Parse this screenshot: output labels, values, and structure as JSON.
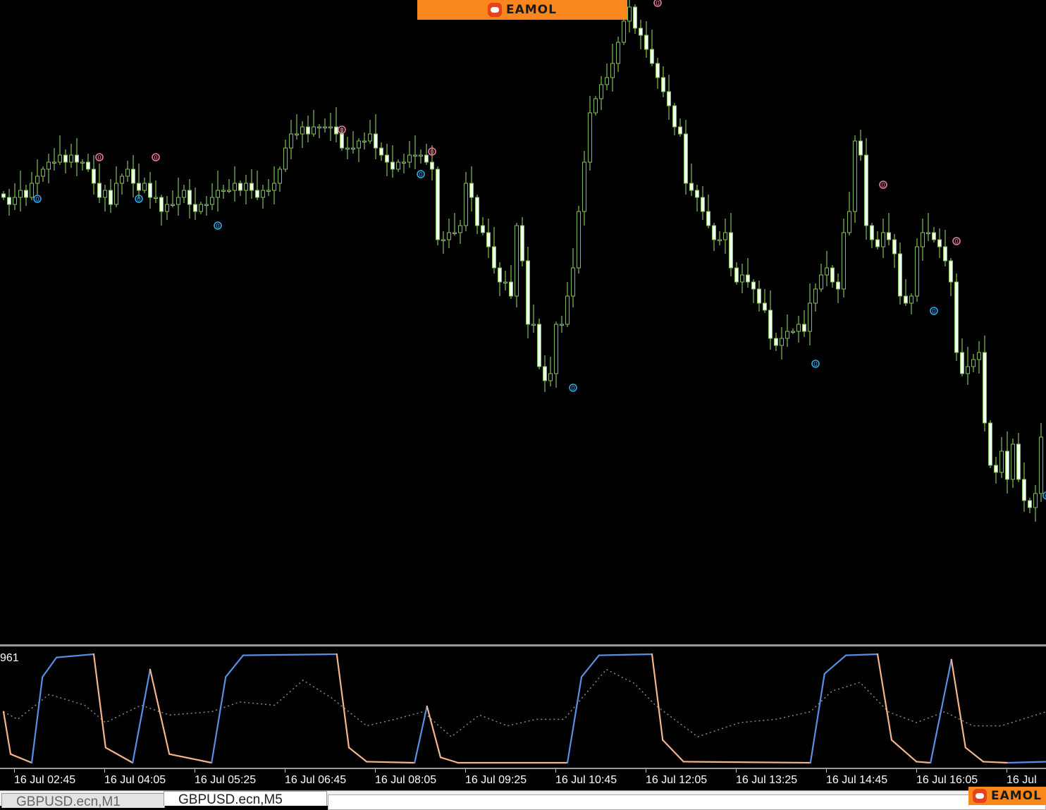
{
  "branding": {
    "logo_text": "EAMOL",
    "logo_color": "#fa861e"
  },
  "indicator": {
    "label": "961",
    "main_rising_color": "#5b8fe6",
    "main_falling_color": "#f5b48a",
    "signal_color": "#8a8a8a"
  },
  "time_axis": {
    "labels": [
      "16 Jul 02:45",
      "16 Jul 04:05",
      "16 Jul 05:25",
      "16 Jul 06:45",
      "16 Jul 08:05",
      "16 Jul 09:25",
      "16 Jul 10:45",
      "16 Jul 12:05",
      "16 Jul 13:25",
      "16 Jul 14:45",
      "16 Jul 16:05",
      "16 Jul"
    ]
  },
  "tabs": [
    {
      "label": "GBPUSD.ecn,M1",
      "active": false
    },
    {
      "label": "GBPUSD.ecn,M5",
      "active": true
    }
  ],
  "chart_data": [
    {
      "type": "candlestick",
      "symbol_timeframe": "GBPUSD.ecn,M5",
      "bar_interval_minutes": 5,
      "first_labeled_bar_time": "16 Jul 02:45",
      "price_axis": "not shown (relative price levels)",
      "colors": {
        "wick_outline": "#7fbf5a",
        "bear_body": "#f2fff0",
        "bull_body": "#000000",
        "background": "#000000"
      },
      "closes": [
        62,
        61,
        62,
        63,
        62,
        64,
        65,
        66,
        67,
        67,
        68,
        67,
        68,
        67,
        67,
        66,
        64,
        62,
        63,
        61,
        64,
        65,
        66,
        64,
        63,
        64,
        62,
        62,
        60,
        61,
        61,
        62,
        63,
        61,
        60,
        61,
        61,
        62,
        63,
        63,
        63,
        64,
        63,
        64,
        63,
        62,
        63,
        63,
        64,
        66,
        69,
        71,
        71,
        72,
        71,
        72,
        72,
        72,
        72,
        71,
        69,
        69,
        69,
        70,
        70,
        71,
        69,
        68,
        67,
        66,
        67,
        67,
        68,
        68,
        68,
        67,
        66,
        56,
        56,
        57,
        57,
        58,
        64,
        62,
        58,
        57,
        55,
        52,
        50,
        50,
        48,
        58,
        53,
        44,
        44,
        38,
        36,
        37,
        44,
        44,
        48,
        52,
        60,
        67,
        74,
        76,
        78,
        79,
        81,
        84,
        87,
        89,
        86,
        85,
        83,
        81,
        79,
        77,
        75,
        72,
        71,
        64,
        63,
        62,
        60,
        58,
        56,
        56,
        57,
        52,
        50,
        51,
        50,
        49,
        47,
        46,
        42,
        41,
        42,
        43,
        43,
        44,
        43,
        47,
        49,
        51,
        52,
        50,
        49,
        57,
        60,
        70,
        68,
        58,
        56,
        55,
        57,
        56,
        54,
        48,
        47,
        48,
        55,
        57,
        57,
        56,
        55,
        53,
        50,
        40,
        37,
        38,
        39,
        40,
        30,
        24,
        23,
        26,
        22,
        27,
        22,
        19,
        18,
        20,
        28
      ],
      "markers": [
        {
          "bar": 17,
          "level": 67.7,
          "text": "0",
          "kind": "high",
          "color": "#e87aa0"
        },
        {
          "bar": 27,
          "level": 67.7,
          "text": "0",
          "kind": "high",
          "color": "#e87aa0"
        },
        {
          "bar": 60,
          "level": 71.6,
          "text": "0",
          "kind": "high",
          "color": "#e87aa0"
        },
        {
          "bar": 76,
          "level": 68.5,
          "text": "0",
          "kind": "high",
          "color": "#e87aa0"
        },
        {
          "bar": 116,
          "level": 89.6,
          "text": "0",
          "kind": "high",
          "color": "#e87aa0"
        },
        {
          "bar": 156,
          "level": 63.8,
          "text": "0",
          "kind": "high",
          "color": "#e87aa0"
        },
        {
          "bar": 169,
          "level": 55.8,
          "text": "0",
          "kind": "high",
          "color": "#e87aa0"
        },
        {
          "bar": 6,
          "level": 61.8,
          "text": "0",
          "kind": "low",
          "color": "#2fa8e8"
        },
        {
          "bar": 24,
          "level": 61.8,
          "text": "0",
          "kind": "low",
          "color": "#2fa8e8"
        },
        {
          "bar": 38,
          "level": 58.0,
          "text": "0",
          "kind": "low",
          "color": "#2fa8e8"
        },
        {
          "bar": 74,
          "level": 65.3,
          "text": "0",
          "kind": "low",
          "color": "#2fa8e8"
        },
        {
          "bar": 101,
          "level": 35.0,
          "text": "0",
          "kind": "low",
          "color": "#2fa8e8"
        },
        {
          "bar": 144,
          "level": 38.4,
          "text": "0",
          "kind": "low",
          "color": "#2fa8e8"
        },
        {
          "bar": 165,
          "level": 45.9,
          "text": "0",
          "kind": "low",
          "color": "#2fa8e8"
        },
        {
          "bar": 185,
          "level": 19.7,
          "text": "0",
          "kind": "low",
          "color": "#2fa8e8"
        }
      ]
    },
    {
      "type": "line",
      "ylim": [
        0,
        100
      ],
      "main_line": [
        [
          0,
          47
        ],
        [
          1.25,
          8
        ],
        [
          5,
          0
        ],
        [
          6.9,
          79
        ],
        [
          9.4,
          97
        ],
        [
          16,
          100
        ],
        [
          18.1,
          14
        ],
        [
          22.9,
          0
        ],
        [
          26,
          86
        ],
        [
          29.4,
          8
        ],
        [
          36.9,
          0
        ],
        [
          39.4,
          79
        ],
        [
          42.5,
          99
        ],
        [
          59.1,
          100
        ],
        [
          61.25,
          14
        ],
        [
          64.4,
          1
        ],
        [
          72.9,
          0
        ],
        [
          75.1,
          52
        ],
        [
          77.5,
          5
        ],
        [
          80.6,
          0
        ],
        [
          100,
          0
        ],
        [
          102.5,
          79
        ],
        [
          105.6,
          99
        ],
        [
          115,
          100
        ],
        [
          116.9,
          21
        ],
        [
          120.6,
          1
        ],
        [
          143.1,
          0
        ],
        [
          145.6,
          82
        ],
        [
          149.4,
          99
        ],
        [
          155,
          100
        ],
        [
          157.5,
          21
        ],
        [
          161.9,
          1
        ],
        [
          164.4,
          0
        ],
        [
          168.1,
          95
        ],
        [
          170.6,
          14
        ],
        [
          173.75,
          1
        ],
        [
          178.1,
          0
        ],
        [
          184.9,
          1
        ]
      ],
      "signal_line": [
        [
          0,
          47
        ],
        [
          2.5,
          40
        ],
        [
          8.1,
          63
        ],
        [
          14.4,
          53
        ],
        [
          18.1,
          37
        ],
        [
          24.4,
          53
        ],
        [
          29.4,
          44
        ],
        [
          36.9,
          47
        ],
        [
          41.9,
          56
        ],
        [
          48.1,
          53
        ],
        [
          53.1,
          76
        ],
        [
          58.1,
          60
        ],
        [
          64.4,
          34
        ],
        [
          69.4,
          40
        ],
        [
          74.4,
          47
        ],
        [
          79.4,
          24
        ],
        [
          84.4,
          44
        ],
        [
          89.4,
          34
        ],
        [
          94.4,
          40
        ],
        [
          99.4,
          40
        ],
        [
          106.9,
          86
        ],
        [
          111.9,
          73
        ],
        [
          115.6,
          53
        ],
        [
          123.1,
          24
        ],
        [
          130.6,
          37
        ],
        [
          136.9,
          40
        ],
        [
          143.1,
          47
        ],
        [
          146.9,
          66
        ],
        [
          151.9,
          74
        ],
        [
          156.9,
          47
        ],
        [
          161.9,
          37
        ],
        [
          166.9,
          47
        ],
        [
          171.9,
          34
        ],
        [
          176.9,
          34
        ],
        [
          184.9,
          47
        ]
      ]
    }
  ]
}
